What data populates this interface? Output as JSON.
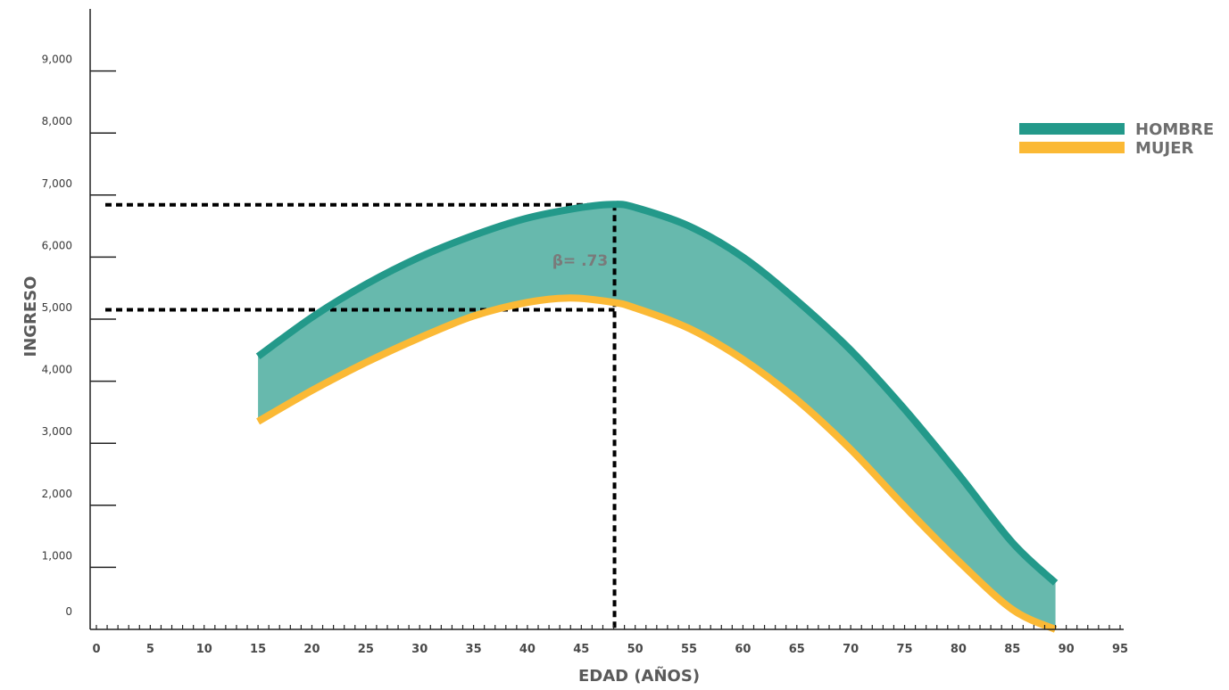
{
  "chart_data": {
    "type": "area",
    "x_label": "EDAD (AÑOS)",
    "y_label": "INGRESO",
    "x_ticks": [
      "0",
      "5",
      "10",
      "15",
      "20",
      "25",
      "30",
      "35",
      "40",
      "45",
      "50",
      "55",
      "60",
      "65",
      "70",
      "75",
      "80",
      "85",
      "90",
      "95"
    ],
    "y_ticks": [
      "0",
      "1,000",
      "2,000",
      "3,000",
      "4,000",
      "5,000",
      "6,000",
      "7,000",
      "8,000",
      "9,000"
    ],
    "xlim": [
      0,
      95
    ],
    "ylim": [
      0,
      10000
    ],
    "legend_position": "right",
    "series": [
      {
        "name": "HOMBRE",
        "color": "#23998a",
        "x": [
          15,
          20,
          25,
          30,
          35,
          40,
          45,
          48,
          50,
          55,
          60,
          65,
          70,
          75,
          80,
          85,
          89
        ],
        "values": [
          4400,
          5030,
          5560,
          6000,
          6350,
          6630,
          6800,
          6850,
          6800,
          6500,
          6000,
          5300,
          4500,
          3550,
          2500,
          1400,
          750
        ]
      },
      {
        "name": "MUJER",
        "color": "#fbb935",
        "x": [
          15,
          20,
          25,
          30,
          35,
          40,
          44,
          48,
          50,
          55,
          60,
          65,
          70,
          75,
          80,
          85,
          89
        ],
        "values": [
          3350,
          3850,
          4300,
          4700,
          5050,
          5270,
          5340,
          5270,
          5180,
          4850,
          4350,
          3700,
          2900,
          1980,
          1100,
          320,
          0
        ]
      }
    ],
    "fill_between_color": "#67b9ad",
    "annotation": {
      "text": "β= .73",
      "x": 48,
      "y_hombre": 6850,
      "y_mujer": 5150
    }
  }
}
